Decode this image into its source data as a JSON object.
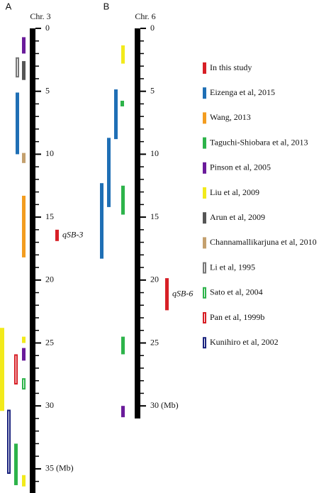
{
  "chart_data": {
    "type": "chromosome-map",
    "panels": [
      {
        "label": "A",
        "title": "Chr. 3",
        "ylim": [
          0,
          37
        ],
        "yticks": [
          0,
          5,
          10,
          15,
          20,
          25,
          30,
          {
            "value": 35,
            "label": "35 (Mb)"
          }
        ],
        "minor_ticks": [
          0,
          1,
          2,
          3,
          4,
          5,
          6,
          7,
          8,
          9,
          10,
          11,
          12,
          13,
          14,
          15,
          16,
          17,
          18,
          19,
          20,
          21,
          22,
          23,
          24,
          25,
          26,
          27,
          28,
          29,
          30,
          31,
          32,
          33,
          34,
          35,
          36
        ]
      },
      {
        "label": "B",
        "title": "Chr. 6",
        "ylim": [
          0,
          31
        ],
        "yticks": [
          0,
          5,
          10,
          15,
          20,
          25,
          {
            "value": 30,
            "label": "30 (Mb)"
          }
        ],
        "minor_ticks": [
          0,
          1,
          2,
          3,
          4,
          5,
          6,
          7,
          8,
          9,
          10,
          11,
          12,
          13,
          14,
          15,
          16,
          17,
          18,
          19,
          20,
          21,
          22,
          23,
          24,
          25,
          26,
          27,
          28,
          29,
          30
        ]
      }
    ],
    "series": [
      {
        "name": "In this study",
        "color": "#d71f26",
        "hollow": false,
        "intervals": [
          [
            [
              16.0,
              16.9
            ]
          ],
          [
            [
              19.85,
              22.4
            ]
          ]
        ],
        "labels": [
          "qSB-3",
          "qSB-6"
        ]
      },
      {
        "name": "Eizenga et al, 2015",
        "color": "#1f6fb5",
        "hollow": false,
        "intervals": [
          [
            [
              5.1,
              10.0
            ]
          ],
          [
            [
              4.85,
              8.8
            ],
            [
              8.7,
              14.2
            ],
            [
              12.3,
              18.3
            ]
          ]
        ]
      },
      {
        "name": "Wang, 2013",
        "color": "#f39c1f",
        "hollow": false,
        "intervals": [
          [
            [
              13.3,
              18.2
            ]
          ],
          []
        ]
      },
      {
        "name": "Taguchi-Shiobara et al, 2013",
        "color": "#2db34a",
        "hollow": false,
        "intervals": [
          [
            [
              33.0,
              36.3
            ]
          ],
          [
            [
              5.75,
              6.2
            ],
            [
              12.5,
              14.8
            ],
            [
              24.5,
              25.9
            ]
          ]
        ]
      },
      {
        "name": "Pinson et al, 2005",
        "color": "#6a1b9a",
        "hollow": false,
        "intervals": [
          [
            [
              0.7,
              2.0
            ],
            [
              25.4,
              26.4
            ]
          ],
          [
            [
              30.0,
              30.9
            ]
          ]
        ]
      },
      {
        "name": "Liu et al, 2009",
        "color": "#f2ea1b",
        "hollow": false,
        "intervals": [
          [
            [
              23.8,
              30.4
            ],
            [
              24.5,
              25.0
            ],
            [
              35.5,
              36.4
            ]
          ],
          [
            [
              1.35,
              2.8
            ]
          ]
        ]
      },
      {
        "name": "Arun et al, 2009",
        "color": "#555555",
        "hollow": false,
        "intervals": [
          [
            [
              2.6,
              4.1
            ]
          ],
          []
        ]
      },
      {
        "name": "Channamallikarjuna et al, 2010",
        "color": "#c4a06e",
        "hollow": false,
        "intervals": [
          [
            [
              9.9,
              10.7
            ]
          ],
          []
        ]
      },
      {
        "name": "Li et al, 1995",
        "color": "#777777",
        "hollow": true,
        "intervals": [
          [
            [
              2.3,
              3.9
            ]
          ],
          []
        ]
      },
      {
        "name": "Sato et al, 2004",
        "color": "#2db34a",
        "hollow": true,
        "intervals": [
          [
            [
              27.8,
              28.7
            ]
          ],
          []
        ]
      },
      {
        "name": "Pan et al, 1999b",
        "color": "#d71f26",
        "hollow": true,
        "intervals": [
          [
            [
              25.9,
              28.3
            ]
          ],
          []
        ]
      },
      {
        "name": "Kunihiro et al, 2002",
        "color": "#1a237e",
        "hollow": true,
        "intervals": [
          [
            [
              30.3,
              35.4
            ]
          ],
          []
        ]
      }
    ]
  }
}
